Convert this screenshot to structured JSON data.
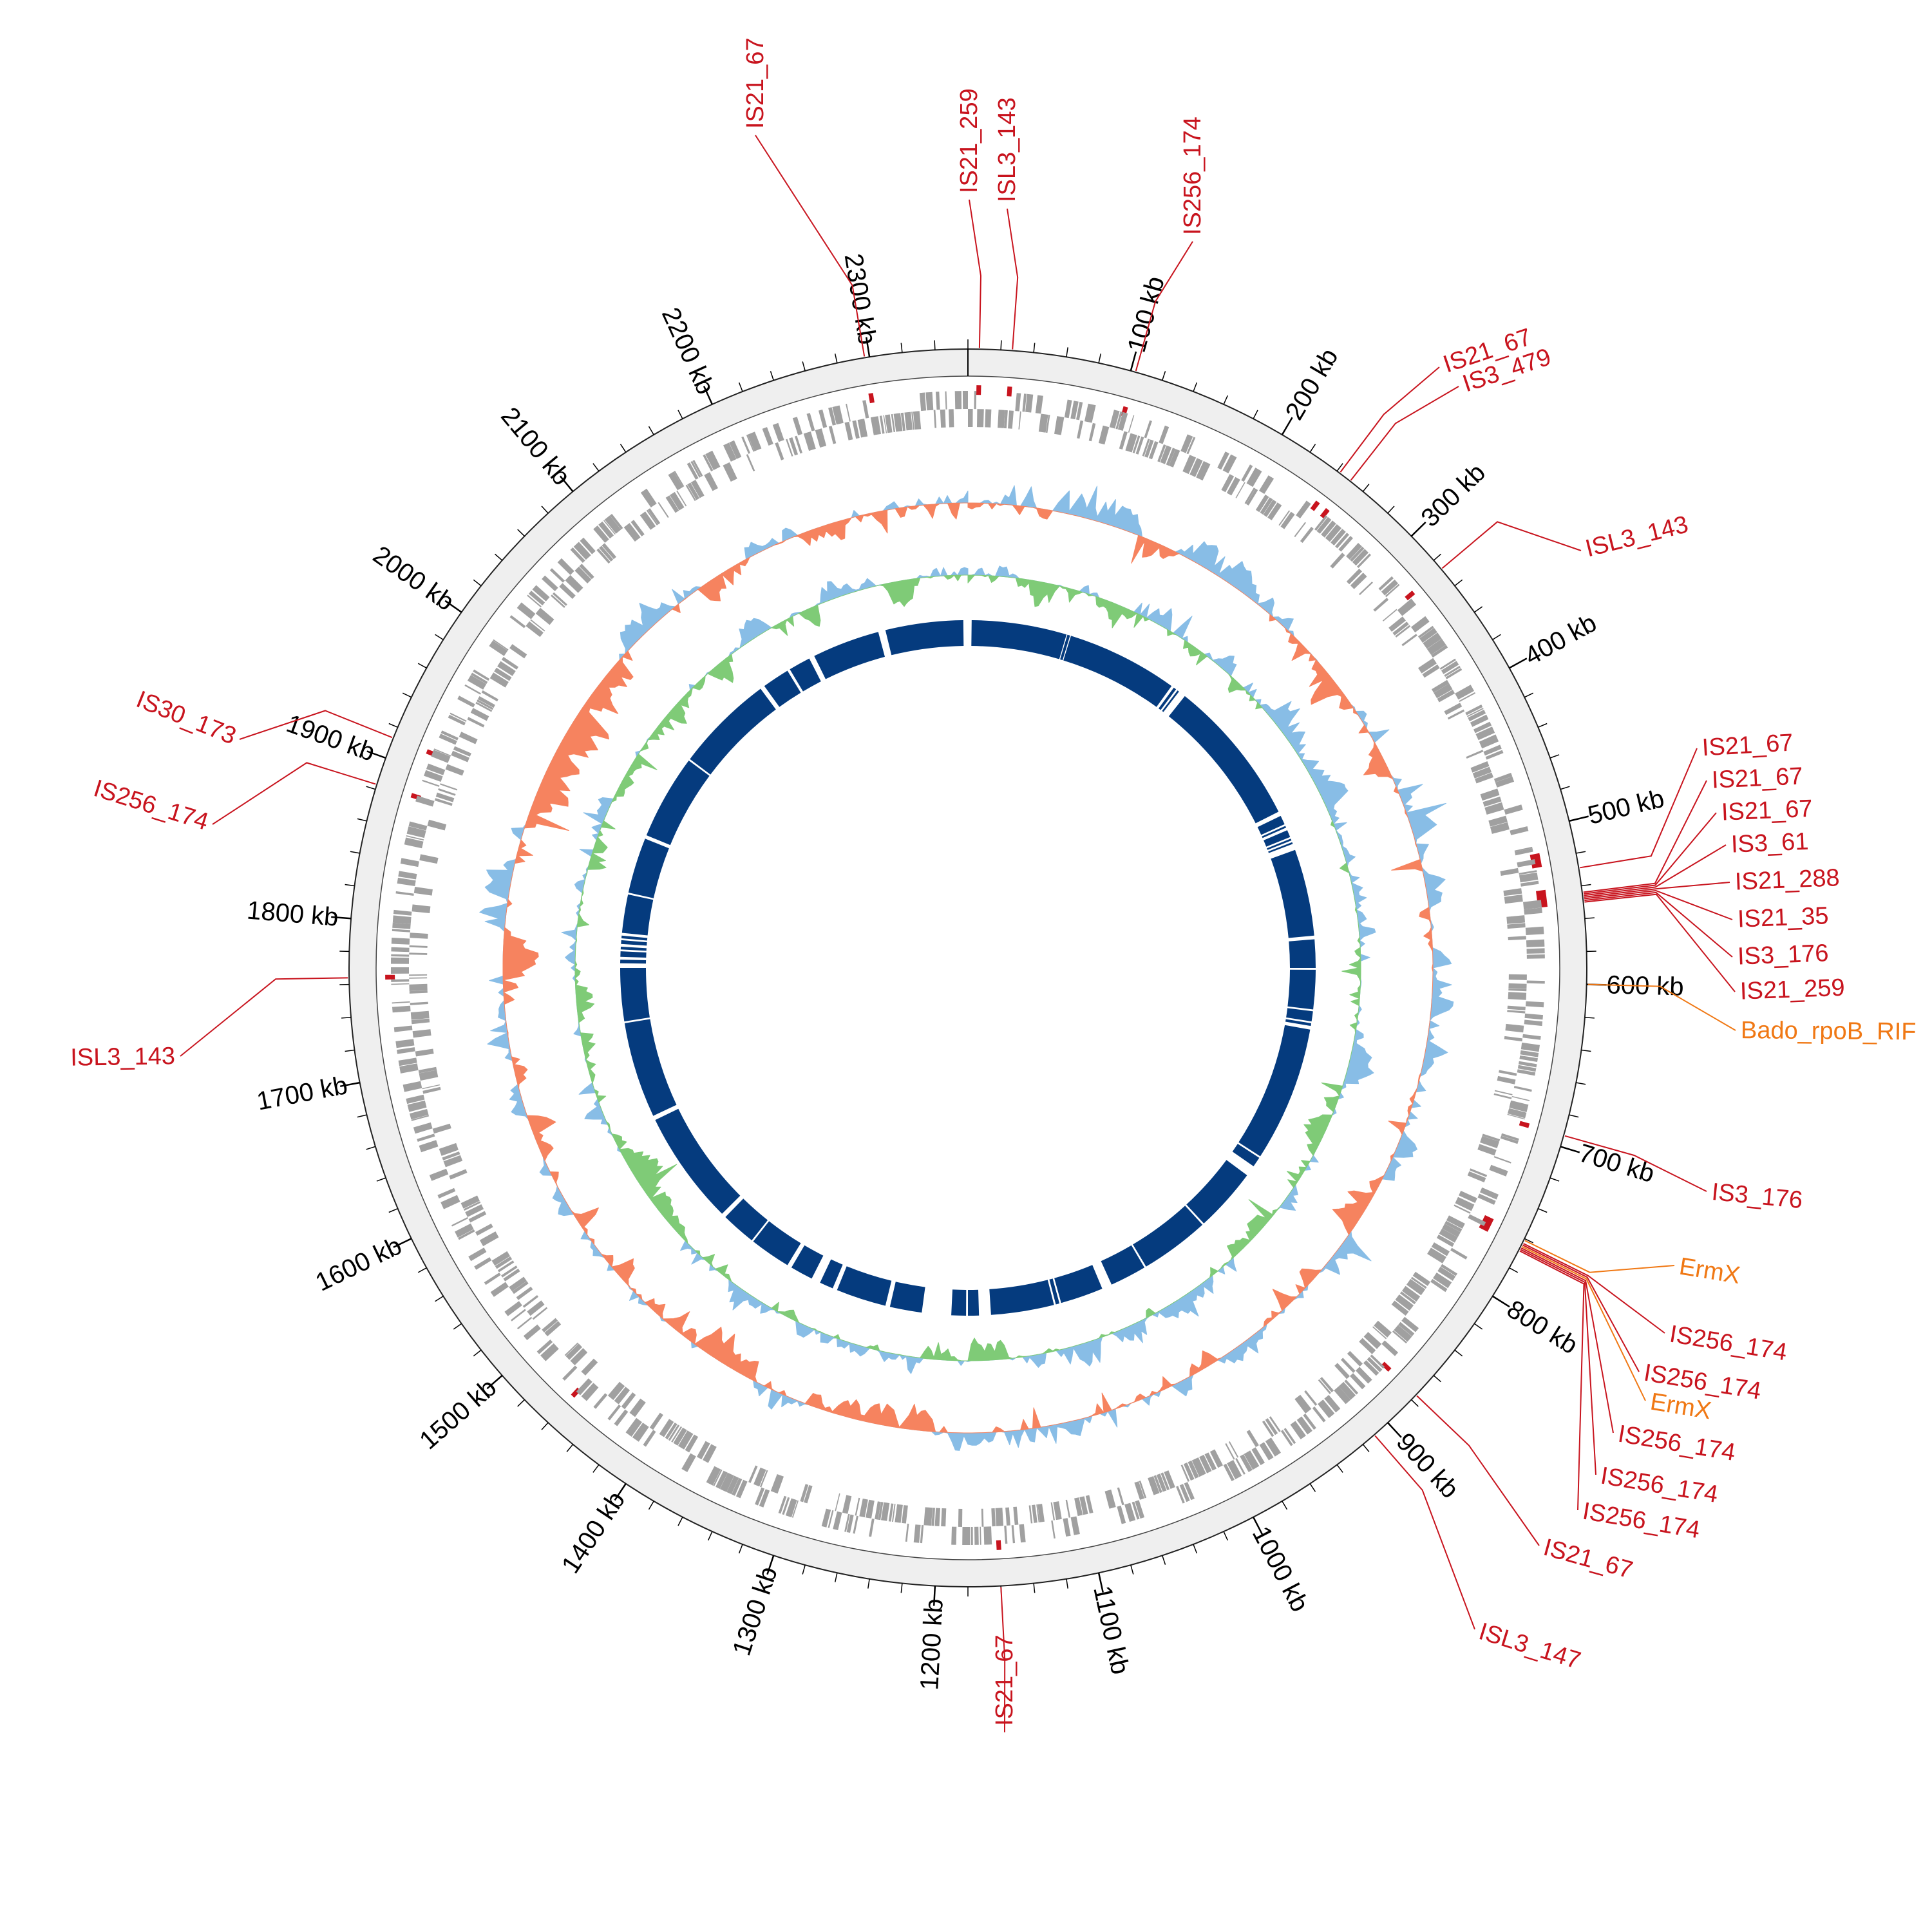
{
  "genome": {
    "total_kb": 2360,
    "scale_unit": "kb",
    "major_ticks_kb": [
      100,
      200,
      300,
      400,
      500,
      600,
      700,
      800,
      900,
      1000,
      1100,
      1200,
      1300,
      1400,
      1500,
      1600,
      1700,
      1800,
      1900,
      2000,
      2100,
      2200,
      2300
    ],
    "minor_tick_step_kb": 20
  },
  "colors": {
    "ring": "#efefef",
    "is_element": "#c8141e",
    "resistance": "#f07814",
    "cds": "#a0a0a0",
    "gc_skew_pos": "#88bde6",
    "gc_skew_neg": "#f6835f",
    "gc_content_pos": "#88bde6",
    "gc_content_neg": "#7fcb77",
    "contigs": "#053b7e"
  },
  "features": [
    {
      "label": "IS21_259",
      "kb": 7,
      "type": "is"
    },
    {
      "label": "ISL3_143",
      "kb": 27,
      "type": "is"
    },
    {
      "label": "IS256_174",
      "kb": 103,
      "type": "is"
    },
    {
      "label": "IS21_67",
      "kb": 242,
      "type": "is"
    },
    {
      "label": "IS3_479",
      "kb": 250,
      "type": "is"
    },
    {
      "label": "ISL3_143",
      "kb": 327,
      "type": "is"
    },
    {
      "label": "IS21_67",
      "kb": 529,
      "type": "is"
    },
    {
      "label": "IS21_67",
      "kb": 544,
      "type": "is"
    },
    {
      "label": "IS21_67",
      "kb": 545,
      "type": "is"
    },
    {
      "label": "IS3_61",
      "kb": 546,
      "type": "is"
    },
    {
      "label": "IS21_288",
      "kb": 547,
      "type": "is"
    },
    {
      "label": "IS21_35",
      "kb": 548,
      "type": "is"
    },
    {
      "label": "IS3_176",
      "kb": 549,
      "type": "is"
    },
    {
      "label": "IS21_259",
      "kb": 550,
      "type": "is"
    },
    {
      "label": "Bado_rpoB_RIF",
      "kb": 600,
      "type": "resistance"
    },
    {
      "label": "IS3_176",
      "kb": 693,
      "type": "is"
    },
    {
      "label": "ErmX",
      "kb": 761,
      "type": "resistance"
    },
    {
      "label": "IS256_174",
      "kb": 763,
      "type": "is"
    },
    {
      "label": "IS256_174",
      "kb": 764,
      "type": "is"
    },
    {
      "label": "ErmX",
      "kb": 765,
      "type": "resistance"
    },
    {
      "label": "IS256_174",
      "kb": 766,
      "type": "is"
    },
    {
      "label": "IS256_174",
      "kb": 767,
      "type": "is"
    },
    {
      "label": "IS256_174",
      "kb": 768,
      "type": "is"
    },
    {
      "label": "IS21_67",
      "kb": 876,
      "type": "is"
    },
    {
      "label": "ISL3_147",
      "kb": 911,
      "type": "is"
    },
    {
      "label": "IS21_67",
      "kb": 1160,
      "type": "is"
    },
    {
      "label": "ISL3_143",
      "kb": 1764,
      "type": "is"
    },
    {
      "label": "IS256_174",
      "kb": 1883,
      "type": "is"
    },
    {
      "label": "IS30_173",
      "kb": 1913,
      "type": "is"
    },
    {
      "label": "IS21_67",
      "kb": 2297,
      "type": "is"
    }
  ],
  "contigs_kb": [
    [
      4,
      108
    ],
    [
      109,
      112
    ],
    [
      113,
      235
    ],
    [
      238,
      241
    ],
    [
      243,
      245
    ],
    [
      253,
      415
    ],
    [
      420,
      430
    ],
    [
      432,
      434
    ],
    [
      437,
      445
    ],
    [
      447,
      449
    ],
    [
      451,
      453
    ],
    [
      460,
      555
    ],
    [
      559,
      590
    ],
    [
      592,
      635
    ],
    [
      637,
      648
    ],
    [
      650,
      653
    ],
    [
      657,
      805
    ],
    [
      807,
      818
    ],
    [
      830,
      900
    ],
    [
      902,
      978
    ],
    [
      980,
      1020
    ],
    [
      1031,
      1078
    ],
    [
      1080,
      1084
    ],
    [
      1086,
      1155
    ],
    [
      1168,
      1180
    ],
    [
      1182,
      1198
    ],
    [
      1230,
      1265
    ],
    [
      1270,
      1325
    ],
    [
      1330,
      1345
    ],
    [
      1355,
      1380
    ],
    [
      1385,
      1430
    ],
    [
      1432,
      1470
    ],
    [
      1475,
      1600
    ],
    [
      1605,
      1710
    ],
    [
      1712,
      1770
    ],
    [
      1775,
      1779
    ],
    [
      1782,
      1788
    ],
    [
      1790,
      1793
    ],
    [
      1796,
      1800
    ],
    [
      1802,
      1805
    ],
    [
      1808,
      1850
    ],
    [
      1852,
      1913
    ],
    [
      1917,
      2010
    ],
    [
      2012,
      2120
    ],
    [
      2125,
      2155
    ],
    [
      2158,
      2182
    ],
    [
      2188,
      2262
    ],
    [
      2270,
      2355
    ]
  ]
}
